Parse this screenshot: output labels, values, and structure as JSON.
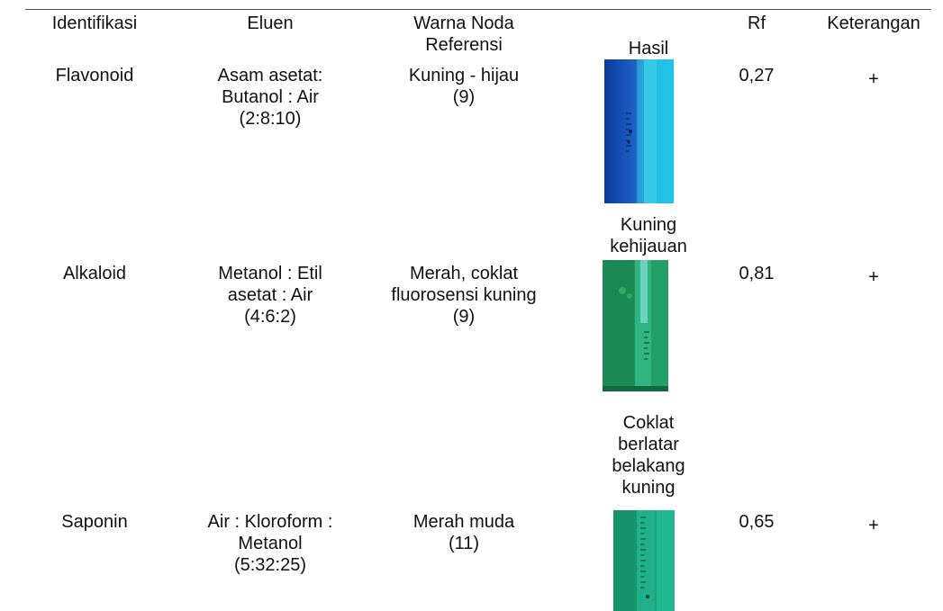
{
  "table": {
    "headers": {
      "identifikasi": "Identifikasi",
      "eluen": "Eluen",
      "warna": "Warna Noda\nReferensi",
      "hasil": "Hasil",
      "rf": "Rf",
      "keterangan": "Keterangan"
    },
    "rows": [
      {
        "identifikasi": "Flavonoid",
        "eluen": "Asam asetat:\nButanol : Air\n(2:8:10)",
        "warna": "Kuning - hijau\n(9)",
        "hasil_caption": "",
        "hasil_image": "tlc-plate-photo",
        "plate_colors": {
          "base": "#1fa6d8",
          "ruler": "#1e5bb8",
          "edge": "#0a2f7a"
        },
        "rf": "0,27",
        "keterangan": "+"
      },
      {
        "identifikasi": "Alkaloid",
        "eluen": "Metanol : Etil\nasetat : Air\n(4:6:2)",
        "warna": "Merah, coklat\nfluorosensi kuning\n(9)",
        "hasil_caption": "Kuning\nkehijauan",
        "hasil_image": "tlc-plate-photo",
        "plate_colors": {
          "base": "#1f9a5a",
          "ruler": "#2bb07a",
          "edge": "#0d5a30"
        },
        "rf": "0,81",
        "keterangan": "+"
      },
      {
        "identifikasi": "Saponin",
        "eluen": "Air : Kloroform :\nMetanol\n(5:32:25)",
        "warna": "Merah muda\n(11)",
        "hasil_caption": "Coklat\nberlatar\nbelakang\nkuning",
        "hasil_image": "tlc-plate-photo",
        "plate_colors": {
          "base": "#18a878",
          "ruler": "#23b890",
          "edge": "#0c6a4a"
        },
        "rf": "0,65",
        "keterangan": "+"
      }
    ]
  }
}
